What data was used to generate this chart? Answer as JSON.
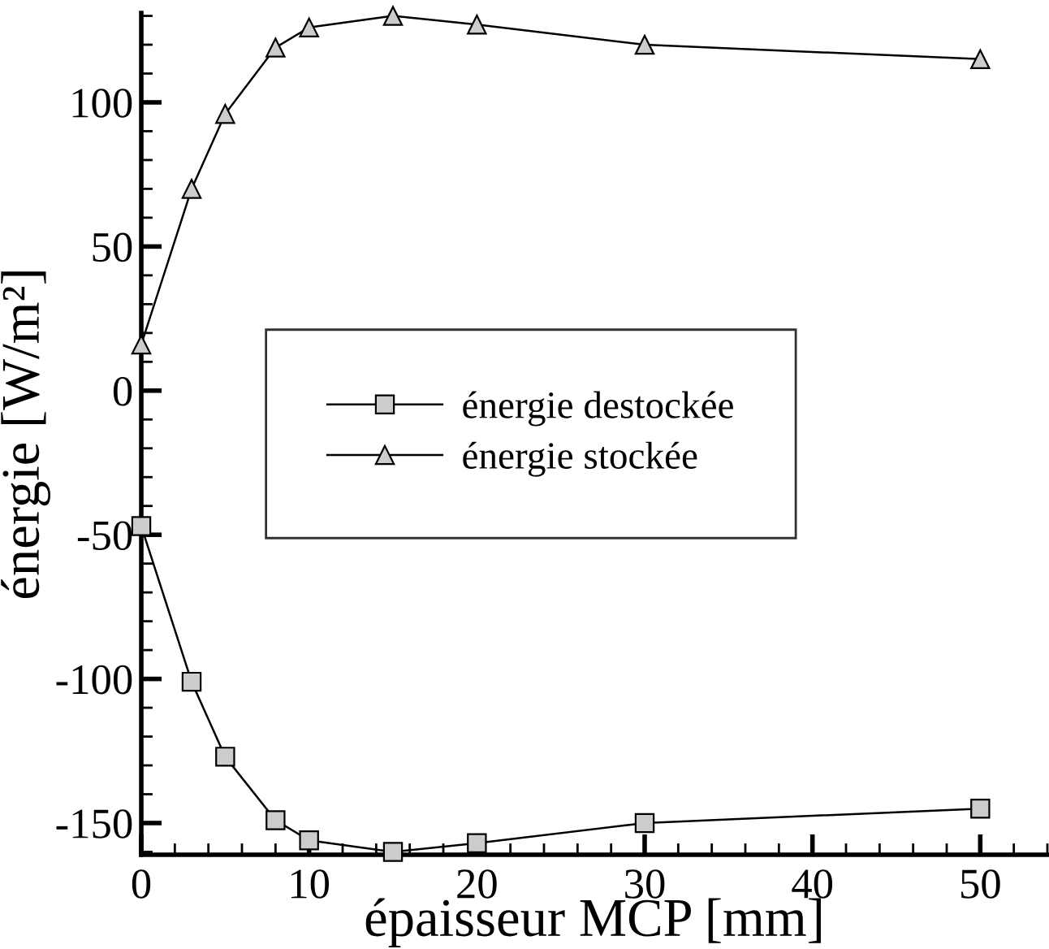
{
  "chart_data": {
    "type": "line",
    "xlabel": "épaisseur MCP [mm]",
    "ylabel": "énergie [W/m²]",
    "x": [
      0,
      3,
      5,
      8,
      10,
      15,
      20,
      30,
      50
    ],
    "series": [
      {
        "name": "énergie destockée",
        "color": "#cccccc",
        "marker": "square",
        "values": [
          -47,
          -101,
          -127,
          -149,
          -156,
          -160,
          -157,
          -150,
          -145
        ]
      },
      {
        "name": "énergie stockée",
        "color": "#cccccc",
        "marker": "triangle",
        "values": [
          16,
          70,
          96,
          119,
          126,
          130,
          127,
          120,
          115
        ]
      }
    ],
    "xlim": [
      0,
      54
    ],
    "xticks": [
      0,
      10,
      20,
      30,
      40,
      50
    ],
    "ylim": [
      -161,
      131
    ],
    "yticks": [
      -150,
      -100,
      -50,
      0,
      50,
      100
    ],
    "legend": "center",
    "grid": false,
    "line_style": "solid"
  }
}
